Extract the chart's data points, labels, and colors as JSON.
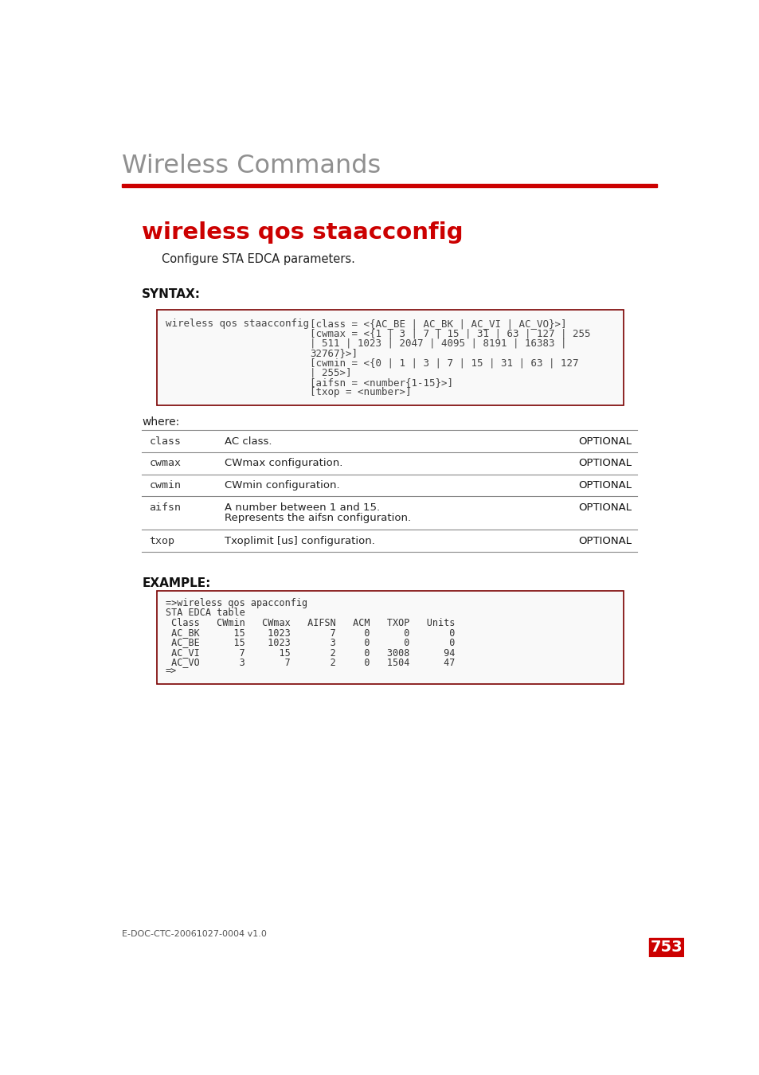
{
  "page_title": "Wireless Commands",
  "section_title": "wireless qos staacconfig",
  "description": "Configure STA EDCA parameters.",
  "syntax_label": "SYNTAX:",
  "syntax_command": "wireless qos staacconfig",
  "where_label": "where:",
  "params": [
    {
      "name": "class",
      "desc": "AC class.",
      "desc2": "",
      "tag": "OPTIONAL"
    },
    {
      "name": "cwmax",
      "desc": "CWmax configuration.",
      "desc2": "",
      "tag": "OPTIONAL"
    },
    {
      "name": "cwmin",
      "desc": "CWmin configuration.",
      "desc2": "",
      "tag": "OPTIONAL"
    },
    {
      "name": "aifsn",
      "desc": "A number between 1 and 15.",
      "desc2": "Represents the aifsn configuration.",
      "tag": "OPTIONAL"
    },
    {
      "name": "txop",
      "desc": "Txoplimit [us] configuration.",
      "desc2": "",
      "tag": "OPTIONAL"
    }
  ],
  "example_label": "EXAMPLE:",
  "example_lines": [
    "=>wireless qos apacconfig",
    "STA EDCA table",
    " Class   CWmin   CWmax   AIFSN   ACM   TXOP   Units",
    " AC_BK      15    1023       7     0      0       0",
    " AC_BE      15    1023       3     0      0       0",
    " AC_VI       7      15       2     0   3008      94",
    " AC_VO       3       7       2     0   1504      47",
    "=>"
  ],
  "syntax_options": [
    "[class = <{AC_BE | AC_BK | AC_VI | AC_VO}>]",
    "[cwmax = <{1 | 3 | 7 | 15 | 31 | 63 | 127 | 255",
    "| 511 | 1023 | 2047 | 4095 | 8191 | 16383 |",
    "32767}>]",
    "[cwmin = <{0 | 1 | 3 | 7 | 15 | 31 | 63 | 127",
    "| 255>]",
    "[aifsn = <number{1-15}>]",
    "[txop = <number>]"
  ],
  "footer_left": "E-DOC-CTC-20061027-0004 v1.0",
  "footer_page": "753",
  "red_color": "#cc0000",
  "dark_red_border": "#7a0000",
  "title_color": "#909090",
  "bg_color": "#ffffff"
}
